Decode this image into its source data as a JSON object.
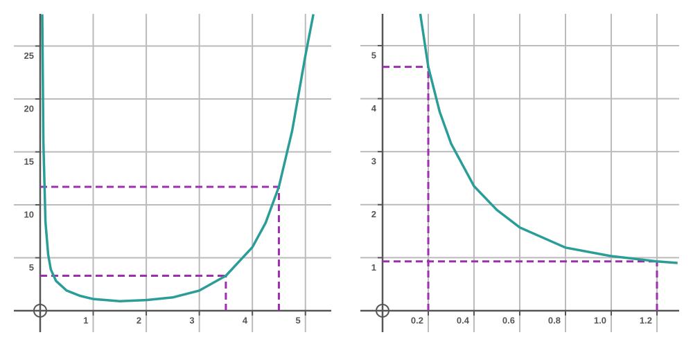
{
  "chart_data": [
    {
      "type": "line",
      "x": [
        0.04,
        0.06,
        0.1,
        0.15,
        0.2,
        0.3,
        0.5,
        0.75,
        1,
        1.5,
        2,
        2.5,
        3,
        3.5,
        4,
        4.25,
        4.5,
        4.75,
        5,
        5.15
      ],
      "series": [
        {
          "color": "#2a9d98",
          "values": [
            28,
            16,
            8.4,
            5.3,
            3.9,
            2.8,
            1.9,
            1.4,
            1.1,
            0.9,
            1.0,
            1.25,
            1.9,
            3.3,
            6.0,
            8.3,
            11.7,
            17,
            24.1,
            28
          ]
        }
      ],
      "guides": [
        {
          "x": 3.5,
          "y": 3.3
        },
        {
          "x": 4.5,
          "y": 11.7
        }
      ],
      "guide_color": "#9c2fae",
      "xlim": [
        -0.496,
        5.487
      ],
      "ylim": [
        -2.03,
        28.04
      ],
      "xticks": [
        1,
        2,
        3,
        4,
        5
      ],
      "yticks": [
        5,
        10,
        15,
        20,
        25
      ],
      "grid": true
    },
    {
      "type": "line",
      "x": [
        0.165,
        0.2,
        0.25,
        0.3,
        0.4,
        0.5,
        0.6,
        0.8,
        1.0,
        1.2,
        1.29
      ],
      "series": [
        {
          "color": "#2a9d98",
          "values": [
            5.6,
            4.6,
            3.75,
            3.15,
            2.35,
            1.9,
            1.57,
            1.19,
            1.03,
            0.93,
            0.9
          ]
        }
      ],
      "guides": [
        {
          "x": 0.2,
          "y": 4.6
        },
        {
          "x": 1.2,
          "y": 0.93
        }
      ],
      "guide_color": "#9c2fae",
      "xlim": [
        -0.097,
        1.297
      ],
      "ylim": [
        -0.405,
        5.6
      ],
      "xticks": [
        0.2,
        0.4,
        0.6,
        0.8,
        {
          "value": 1,
          "label": "1.0"
        },
        1.2
      ],
      "yticks": [
        1,
        2,
        3,
        4,
        5
      ],
      "grid": true
    }
  ]
}
